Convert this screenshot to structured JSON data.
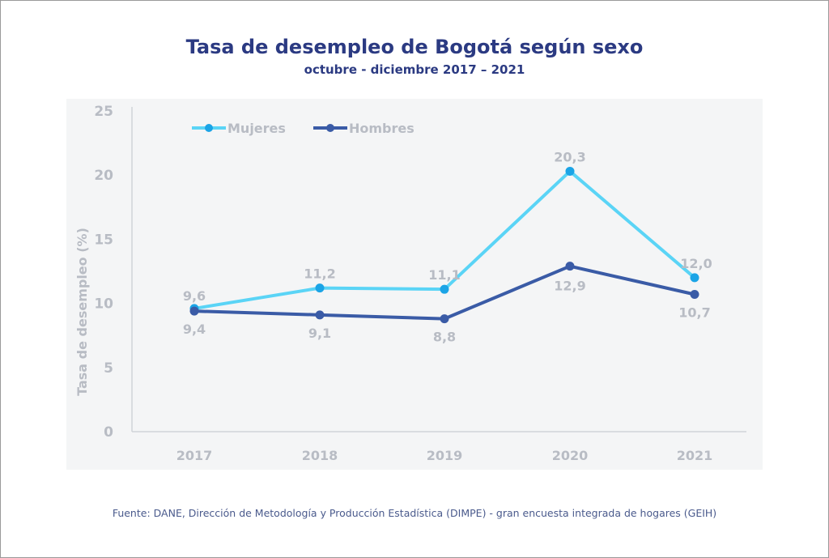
{
  "chart_data": {
    "type": "line",
    "title": "Tasa de desempleo de Bogotá según sexo",
    "subtitle": "octubre - diciembre 2017 – 2021",
    "ylabel": "Tasa de desempleo (%)",
    "xlabel": "",
    "categories": [
      "2017",
      "2018",
      "2019",
      "2020",
      "2021"
    ],
    "ylim": [
      0,
      25
    ],
    "yticks": [
      "0",
      "5",
      "10",
      "15",
      "20",
      "25"
    ],
    "legend_position": "top-left",
    "series": [
      {
        "name": "Mujeres",
        "values": [
          9.6,
          11.2,
          11.1,
          20.3,
          12.0
        ],
        "labels": [
          "9,6",
          "11,2",
          "11,1",
          "20,3",
          "12,0"
        ],
        "color": "#5ad4f6",
        "marker": "#1ba4e6"
      },
      {
        "name": "Hombres",
        "values": [
          9.4,
          9.1,
          8.8,
          12.9,
          10.7
        ],
        "labels": [
          "9,4",
          "9,1",
          "8,8",
          "12,9",
          "10,7"
        ],
        "color": "#3a5ba6",
        "marker": "#3a5ba6"
      }
    ]
  },
  "source": "Fuente: DANE, Dirección de Metodología y Producción Estadística (DIMPE) - gran encuesta integrada de hogares (GEIH)"
}
